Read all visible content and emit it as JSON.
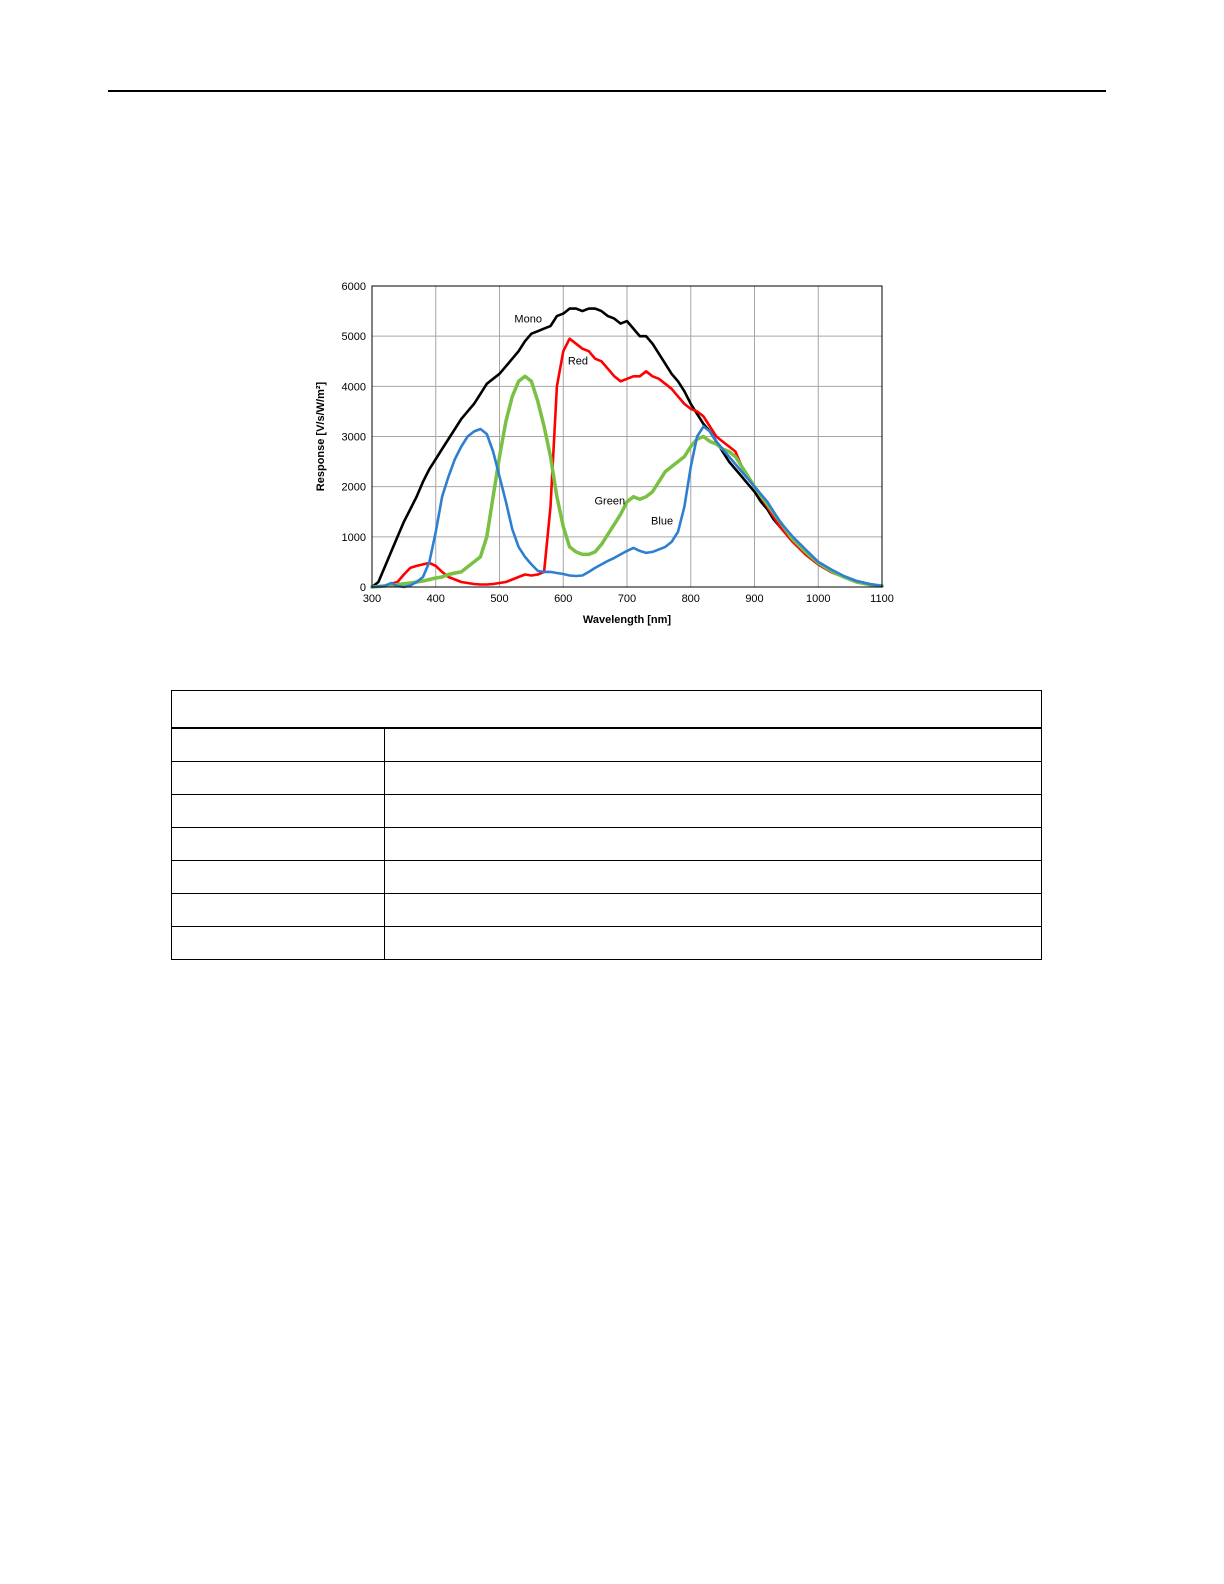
{
  "chart_data": {
    "type": "line",
    "xlabel": "Wavelength [nm]",
    "ylabel": "Response [V/s/W/m²]",
    "xlim": [
      300,
      1100
    ],
    "ylim": [
      0,
      6000
    ],
    "x_ticks": [
      300,
      400,
      500,
      600,
      700,
      800,
      900,
      1000,
      1100
    ],
    "y_ticks": [
      0,
      1000,
      2000,
      3000,
      4000,
      5000,
      6000
    ],
    "grid": true,
    "series": [
      {
        "name": "Mono",
        "color": "#000000",
        "points": [
          [
            300,
            0
          ],
          [
            310,
            100
          ],
          [
            320,
            400
          ],
          [
            330,
            700
          ],
          [
            340,
            1000
          ],
          [
            350,
            1300
          ],
          [
            360,
            1550
          ],
          [
            370,
            1800
          ],
          [
            380,
            2100
          ],
          [
            390,
            2350
          ],
          [
            400,
            2550
          ],
          [
            410,
            2750
          ],
          [
            420,
            2950
          ],
          [
            430,
            3150
          ],
          [
            440,
            3350
          ],
          [
            450,
            3500
          ],
          [
            460,
            3650
          ],
          [
            470,
            3850
          ],
          [
            480,
            4050
          ],
          [
            490,
            4150
          ],
          [
            500,
            4250
          ],
          [
            510,
            4400
          ],
          [
            520,
            4550
          ],
          [
            530,
            4700
          ],
          [
            540,
            4900
          ],
          [
            550,
            5050
          ],
          [
            560,
            5100
          ],
          [
            570,
            5150
          ],
          [
            580,
            5200
          ],
          [
            590,
            5400
          ],
          [
            600,
            5450
          ],
          [
            610,
            5550
          ],
          [
            620,
            5550
          ],
          [
            630,
            5500
          ],
          [
            640,
            5550
          ],
          [
            650,
            5550
          ],
          [
            660,
            5500
          ],
          [
            670,
            5400
          ],
          [
            680,
            5350
          ],
          [
            690,
            5250
          ],
          [
            700,
            5300
          ],
          [
            710,
            5150
          ],
          [
            720,
            5000
          ],
          [
            730,
            5000
          ],
          [
            740,
            4850
          ],
          [
            750,
            4650
          ],
          [
            760,
            4450
          ],
          [
            770,
            4250
          ],
          [
            780,
            4100
          ],
          [
            790,
            3900
          ],
          [
            800,
            3650
          ],
          [
            810,
            3450
          ],
          [
            820,
            3250
          ],
          [
            830,
            3100
          ],
          [
            840,
            2900
          ],
          [
            850,
            2700
          ],
          [
            860,
            2500
          ],
          [
            870,
            2350
          ],
          [
            880,
            2200
          ],
          [
            890,
            2050
          ],
          [
            900,
            1900
          ],
          [
            910,
            1700
          ],
          [
            920,
            1550
          ],
          [
            930,
            1350
          ],
          [
            940,
            1200
          ],
          [
            950,
            1050
          ],
          [
            960,
            900
          ],
          [
            970,
            800
          ],
          [
            980,
            650
          ],
          [
            990,
            550
          ],
          [
            1000,
            450
          ],
          [
            1020,
            300
          ],
          [
            1040,
            200
          ],
          [
            1060,
            120
          ],
          [
            1080,
            60
          ],
          [
            1100,
            20
          ]
        ]
      },
      {
        "name": "Red",
        "color": "#ff0000",
        "points": [
          [
            300,
            0
          ],
          [
            320,
            30
          ],
          [
            340,
            100
          ],
          [
            350,
            250
          ],
          [
            360,
            380
          ],
          [
            370,
            420
          ],
          [
            380,
            450
          ],
          [
            390,
            480
          ],
          [
            400,
            420
          ],
          [
            410,
            300
          ],
          [
            420,
            200
          ],
          [
            430,
            150
          ],
          [
            440,
            100
          ],
          [
            450,
            80
          ],
          [
            460,
            60
          ],
          [
            470,
            50
          ],
          [
            480,
            50
          ],
          [
            490,
            60
          ],
          [
            500,
            80
          ],
          [
            510,
            100
          ],
          [
            520,
            150
          ],
          [
            530,
            200
          ],
          [
            540,
            250
          ],
          [
            550,
            230
          ],
          [
            560,
            250
          ],
          [
            570,
            300
          ],
          [
            580,
            1600
          ],
          [
            590,
            4000
          ],
          [
            600,
            4700
          ],
          [
            610,
            4950
          ],
          [
            620,
            4850
          ],
          [
            630,
            4750
          ],
          [
            640,
            4700
          ],
          [
            650,
            4550
          ],
          [
            660,
            4500
          ],
          [
            670,
            4350
          ],
          [
            680,
            4200
          ],
          [
            690,
            4100
          ],
          [
            700,
            4150
          ],
          [
            710,
            4200
          ],
          [
            720,
            4200
          ],
          [
            730,
            4300
          ],
          [
            740,
            4200
          ],
          [
            750,
            4150
          ],
          [
            760,
            4050
          ],
          [
            770,
            3950
          ],
          [
            780,
            3800
          ],
          [
            790,
            3650
          ],
          [
            800,
            3550
          ],
          [
            810,
            3500
          ],
          [
            820,
            3400
          ],
          [
            830,
            3200
          ],
          [
            840,
            3000
          ],
          [
            850,
            2900
          ],
          [
            860,
            2800
          ],
          [
            870,
            2700
          ],
          [
            880,
            2400
          ],
          [
            890,
            2200
          ],
          [
            900,
            2000
          ],
          [
            920,
            1600
          ],
          [
            940,
            1200
          ],
          [
            960,
            900
          ],
          [
            980,
            650
          ],
          [
            1000,
            450
          ],
          [
            1020,
            300
          ],
          [
            1040,
            200
          ],
          [
            1060,
            100
          ],
          [
            1080,
            50
          ],
          [
            1100,
            20
          ]
        ]
      },
      {
        "name": "Green",
        "color": "#7ac143",
        "points": [
          [
            300,
            0
          ],
          [
            320,
            20
          ],
          [
            340,
            50
          ],
          [
            360,
            80
          ],
          [
            370,
            100
          ],
          [
            380,
            120
          ],
          [
            390,
            150
          ],
          [
            400,
            180
          ],
          [
            410,
            200
          ],
          [
            420,
            250
          ],
          [
            430,
            280
          ],
          [
            440,
            300
          ],
          [
            450,
            400
          ],
          [
            460,
            500
          ],
          [
            470,
            600
          ],
          [
            480,
            1000
          ],
          [
            490,
            1800
          ],
          [
            500,
            2600
          ],
          [
            510,
            3300
          ],
          [
            520,
            3800
          ],
          [
            530,
            4100
          ],
          [
            540,
            4200
          ],
          [
            550,
            4100
          ],
          [
            560,
            3700
          ],
          [
            570,
            3200
          ],
          [
            580,
            2600
          ],
          [
            590,
            1800
          ],
          [
            600,
            1200
          ],
          [
            610,
            800
          ],
          [
            620,
            700
          ],
          [
            630,
            650
          ],
          [
            640,
            650
          ],
          [
            650,
            700
          ],
          [
            660,
            850
          ],
          [
            670,
            1050
          ],
          [
            680,
            1250
          ],
          [
            690,
            1450
          ],
          [
            700,
            1700
          ],
          [
            710,
            1800
          ],
          [
            720,
            1750
          ],
          [
            730,
            1800
          ],
          [
            740,
            1900
          ],
          [
            750,
            2100
          ],
          [
            760,
            2300
          ],
          [
            770,
            2400
          ],
          [
            780,
            2500
          ],
          [
            790,
            2600
          ],
          [
            800,
            2800
          ],
          [
            810,
            2950
          ],
          [
            820,
            3000
          ],
          [
            830,
            2900
          ],
          [
            840,
            2850
          ],
          [
            850,
            2750
          ],
          [
            860,
            2700
          ],
          [
            870,
            2600
          ],
          [
            880,
            2400
          ],
          [
            890,
            2200
          ],
          [
            900,
            2000
          ],
          [
            920,
            1650
          ],
          [
            940,
            1300
          ],
          [
            960,
            950
          ],
          [
            980,
            700
          ],
          [
            1000,
            480
          ],
          [
            1020,
            320
          ],
          [
            1040,
            200
          ],
          [
            1060,
            100
          ],
          [
            1080,
            50
          ],
          [
            1100,
            20
          ]
        ]
      },
      {
        "name": "Blue",
        "color": "#2e7fd1",
        "points": [
          [
            300,
            0
          ],
          [
            320,
            20
          ],
          [
            330,
            80
          ],
          [
            340,
            20
          ],
          [
            350,
            0
          ],
          [
            360,
            30
          ],
          [
            370,
            100
          ],
          [
            380,
            200
          ],
          [
            390,
            500
          ],
          [
            400,
            1100
          ],
          [
            410,
            1800
          ],
          [
            420,
            2200
          ],
          [
            430,
            2550
          ],
          [
            440,
            2800
          ],
          [
            450,
            3000
          ],
          [
            460,
            3100
          ],
          [
            470,
            3150
          ],
          [
            480,
            3050
          ],
          [
            490,
            2700
          ],
          [
            500,
            2200
          ],
          [
            510,
            1700
          ],
          [
            520,
            1150
          ],
          [
            530,
            800
          ],
          [
            540,
            600
          ],
          [
            550,
            450
          ],
          [
            560,
            320
          ],
          [
            570,
            300
          ],
          [
            580,
            300
          ],
          [
            590,
            280
          ],
          [
            600,
            260
          ],
          [
            610,
            230
          ],
          [
            620,
            220
          ],
          [
            630,
            230
          ],
          [
            640,
            300
          ],
          [
            650,
            380
          ],
          [
            660,
            450
          ],
          [
            670,
            520
          ],
          [
            680,
            580
          ],
          [
            690,
            650
          ],
          [
            700,
            720
          ],
          [
            710,
            780
          ],
          [
            720,
            720
          ],
          [
            730,
            680
          ],
          [
            740,
            700
          ],
          [
            750,
            750
          ],
          [
            760,
            800
          ],
          [
            770,
            900
          ],
          [
            780,
            1100
          ],
          [
            790,
            1600
          ],
          [
            800,
            2400
          ],
          [
            810,
            3000
          ],
          [
            820,
            3200
          ],
          [
            830,
            3100
          ],
          [
            840,
            2900
          ],
          [
            850,
            2750
          ],
          [
            860,
            2600
          ],
          [
            870,
            2450
          ],
          [
            880,
            2300
          ],
          [
            890,
            2150
          ],
          [
            900,
            2000
          ],
          [
            920,
            1700
          ],
          [
            940,
            1300
          ],
          [
            960,
            1000
          ],
          [
            980,
            750
          ],
          [
            1000,
            500
          ],
          [
            1020,
            350
          ],
          [
            1040,
            220
          ],
          [
            1060,
            120
          ],
          [
            1080,
            60
          ],
          [
            1100,
            20
          ]
        ]
      }
    ],
    "annotations": [
      {
        "text": "Mono",
        "x": 545,
        "y": 5270
      },
      {
        "text": "Red",
        "x": 623,
        "y": 4440
      },
      {
        "text": "Green",
        "x": 673,
        "y": 1640
      },
      {
        "text": "Blue",
        "x": 755,
        "y": 1245
      }
    ]
  },
  "spec_table": {
    "rows": [
      [
        "",
        ""
      ],
      [
        "",
        ""
      ],
      [
        "",
        ""
      ],
      [
        "",
        ""
      ],
      [
        "",
        ""
      ],
      [
        "",
        ""
      ],
      [
        "",
        ""
      ]
    ]
  }
}
